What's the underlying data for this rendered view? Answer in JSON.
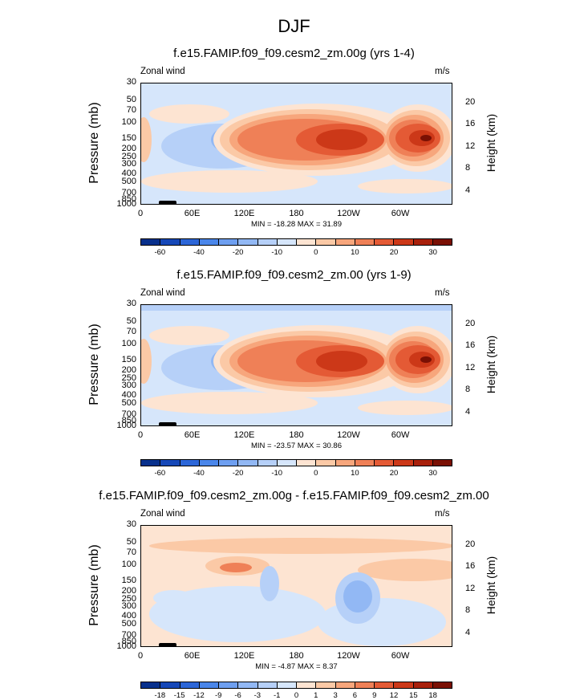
{
  "title": "DJF",
  "chart_data": [
    {
      "type": "heatmap",
      "title": "f.e15.FAMIP.f09_f09.cesm2_zm.00g (yrs 1-4)",
      "left_label": "Zonal wind",
      "right_label": "m/s",
      "ylabel": "Pressure (mb)",
      "ylabel_right": "Height (km)",
      "yticks": [
        "30",
        "50",
        "70",
        "100",
        "150",
        "200",
        "250",
        "300",
        "400",
        "500",
        "700",
        "850",
        "1000"
      ],
      "yticks_right": [
        "20",
        "16",
        "12",
        "8",
        "4"
      ],
      "xticks": [
        "0",
        "60E",
        "120E",
        "180",
        "120W",
        "60W"
      ],
      "stats": "MIN = -18.28  MAX = 31.89",
      "colorbar_labels": [
        "-60",
        "-40",
        "-20",
        "-10",
        "0",
        "10",
        "20",
        "30"
      ],
      "colorbar_colors": [
        "#08308c",
        "#1648b8",
        "#2c66d8",
        "#4a86ea",
        "#6e9ff0",
        "#92b8f4",
        "#b6d0f8",
        "#d6e6fb",
        "#fde4d2",
        "#fbc9a6",
        "#f7a67c",
        "#ef8057",
        "#e45a35",
        "#cc3818",
        "#a8200b",
        "#7a1004"
      ]
    },
    {
      "type": "heatmap",
      "title": "f.e15.FAMIP.f09_f09.cesm2_zm.00 (yrs 1-9)",
      "left_label": "Zonal wind",
      "right_label": "m/s",
      "ylabel": "Pressure (mb)",
      "ylabel_right": "Height (km)",
      "yticks": [
        "30",
        "50",
        "70",
        "100",
        "150",
        "200",
        "250",
        "300",
        "400",
        "500",
        "700",
        "850",
        "1000"
      ],
      "yticks_right": [
        "20",
        "16",
        "12",
        "8",
        "4"
      ],
      "xticks": [
        "0",
        "60E",
        "120E",
        "180",
        "120W",
        "60W"
      ],
      "stats": "MIN = -23.57  MAX = 30.86",
      "colorbar_labels": [
        "-60",
        "-40",
        "-20",
        "-10",
        "0",
        "10",
        "20",
        "30"
      ],
      "colorbar_colors": [
        "#08308c",
        "#1648b8",
        "#2c66d8",
        "#4a86ea",
        "#6e9ff0",
        "#92b8f4",
        "#b6d0f8",
        "#d6e6fb",
        "#fde4d2",
        "#fbc9a6",
        "#f7a67c",
        "#ef8057",
        "#e45a35",
        "#cc3818",
        "#a8200b",
        "#7a1004"
      ]
    },
    {
      "type": "heatmap",
      "title": "f.e15.FAMIP.f09_f09.cesm2_zm.00g - f.e15.FAMIP.f09_f09.cesm2_zm.00",
      "left_label": "Zonal wind",
      "right_label": "m/s",
      "ylabel": "Pressure (mb)",
      "ylabel_right": "Height (km)",
      "yticks": [
        "30",
        "50",
        "70",
        "100",
        "150",
        "200",
        "250",
        "300",
        "400",
        "500",
        "700",
        "850",
        "1000"
      ],
      "yticks_right": [
        "20",
        "16",
        "12",
        "8",
        "4"
      ],
      "xticks": [
        "0",
        "60E",
        "120E",
        "180",
        "120W",
        "60W"
      ],
      "stats": "MIN = -4.87  MAX = 8.37",
      "colorbar_labels": [
        "-18",
        "-15",
        "-12",
        "-9",
        "-6",
        "-3",
        "-1",
        "0",
        "1",
        "3",
        "6",
        "9",
        "12",
        "15",
        "18"
      ],
      "colorbar_colors": [
        "#08308c",
        "#1648b8",
        "#2c66d8",
        "#4a86ea",
        "#6e9ff0",
        "#92b8f4",
        "#b6d0f8",
        "#d6e6fb",
        "#fde4d2",
        "#fbc9a6",
        "#f7a67c",
        "#ef8057",
        "#e45a35",
        "#cc3818",
        "#a8200b",
        "#7a1004"
      ]
    }
  ]
}
